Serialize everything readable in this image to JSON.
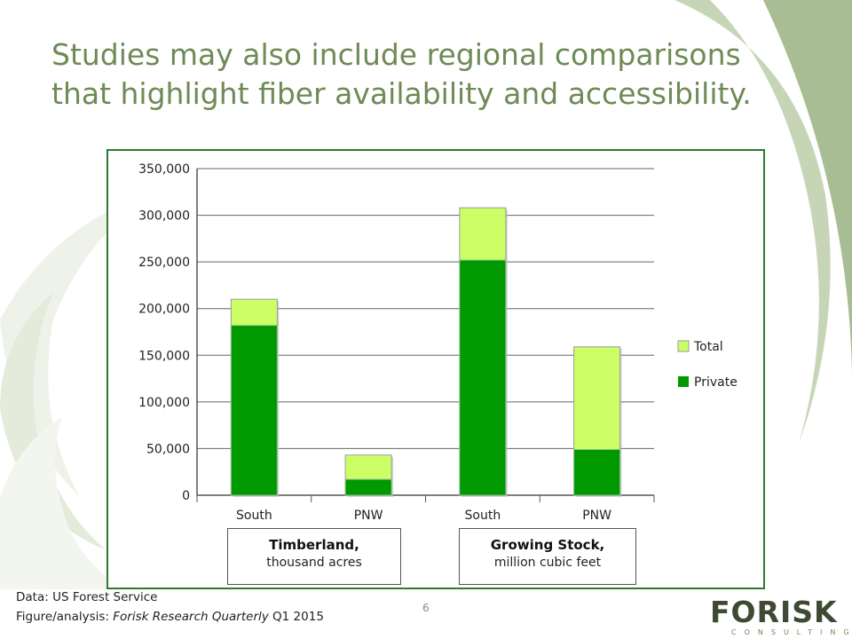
{
  "slide": {
    "title_line1": "Studies may also include regional comparisons",
    "title_line2": "that highlight fiber availability and accessibility.",
    "footer_line1": "Data: US Forest Service",
    "footer_prefix": "Figure/analysis: ",
    "footer_italic": "Forisk Research Quarterly",
    "footer_suffix": " Q1 2015",
    "page_number": "6",
    "logo_name": "FORISK",
    "logo_sub": "CONSULTING"
  },
  "chart_data": {
    "type": "bar",
    "stacked": true,
    "categories": [
      "South",
      "PNW",
      "South",
      "PNW"
    ],
    "groups": [
      {
        "bold": "Timberland,",
        "normal": "thousand acres",
        "categories": [
          0,
          1
        ]
      },
      {
        "bold": "Growing Stock,",
        "normal": "million cubic feet",
        "categories": [
          2,
          3
        ]
      }
    ],
    "series": [
      {
        "name": "Total",
        "values": [
          210000,
          43000,
          308000,
          159000
        ],
        "color": "#ccff66"
      },
      {
        "name": "Private",
        "values": [
          182000,
          17000,
          252000,
          49000
        ],
        "color": "#009900"
      }
    ],
    "yticks": [
      "0",
      "50,000",
      "100,000",
      "150,000",
      "200,000",
      "250,000",
      "300,000",
      "350,000"
    ],
    "ylim": [
      0,
      350000
    ],
    "grid": true,
    "legend_position": "right"
  }
}
